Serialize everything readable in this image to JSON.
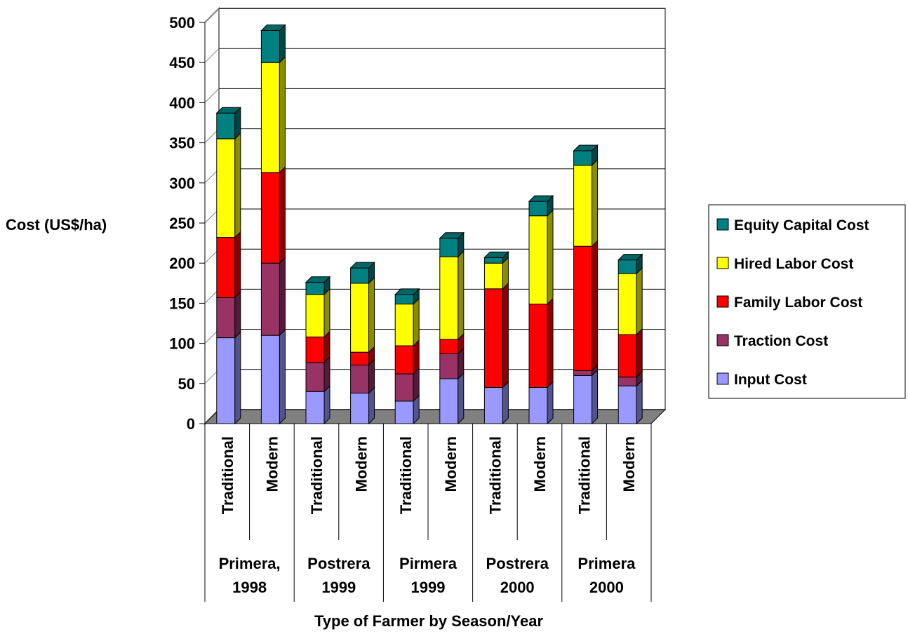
{
  "chart_data": {
    "type": "bar",
    "stacked": true,
    "three_d": true,
    "categories": [
      "Traditional",
      "Modern",
      "Traditional",
      "Modern",
      "Traditional",
      "Modern",
      "Traditional",
      "Modern",
      "Traditional",
      "Modern"
    ],
    "groups": [
      {
        "label": [
          "Primera,",
          "1998"
        ]
      },
      {
        "label": [
          "Postrera",
          "1999"
        ]
      },
      {
        "label": [
          "Pirmera",
          "1999"
        ]
      },
      {
        "label": [
          "Postrera",
          "2000"
        ]
      },
      {
        "label": [
          "Primera",
          "2000"
        ]
      }
    ],
    "series": [
      {
        "name": "Input Cost",
        "color": "#9999FF",
        "values": [
          107,
          110,
          40,
          38,
          28,
          56,
          45,
          45,
          60,
          47
        ]
      },
      {
        "name": "Traction Cost",
        "color": "#993366",
        "values": [
          50,
          90,
          36,
          35,
          34,
          31,
          0,
          0,
          6,
          11
        ]
      },
      {
        "name": "Family Labor Cost",
        "color": "#FF0000",
        "values": [
          75,
          113,
          32,
          16,
          35,
          18,
          123,
          104,
          155,
          53
        ]
      },
      {
        "name": "Hired Labor Cost",
        "color": "#FFFF00",
        "values": [
          123,
          137,
          53,
          86,
          52,
          103,
          32,
          110,
          101,
          76
        ]
      },
      {
        "name": "Equity Capital Cost",
        "color": "#008080",
        "values": [
          32,
          40,
          15,
          19,
          12,
          23,
          7,
          18,
          18,
          17
        ]
      }
    ],
    "xlabel": "Type of Farmer by Season/Year",
    "ylabel": "Cost (US$/ha)",
    "ylim": [
      0,
      500
    ],
    "yticks": [
      0,
      50,
      100,
      150,
      200,
      250,
      300,
      350,
      400,
      450,
      500
    ],
    "grid": true,
    "legend_position": "right",
    "legend_order": [
      "Equity Capital Cost",
      "Hired Labor Cost",
      "Family Labor Cost",
      "Traction Cost",
      "Input Cost"
    ]
  }
}
